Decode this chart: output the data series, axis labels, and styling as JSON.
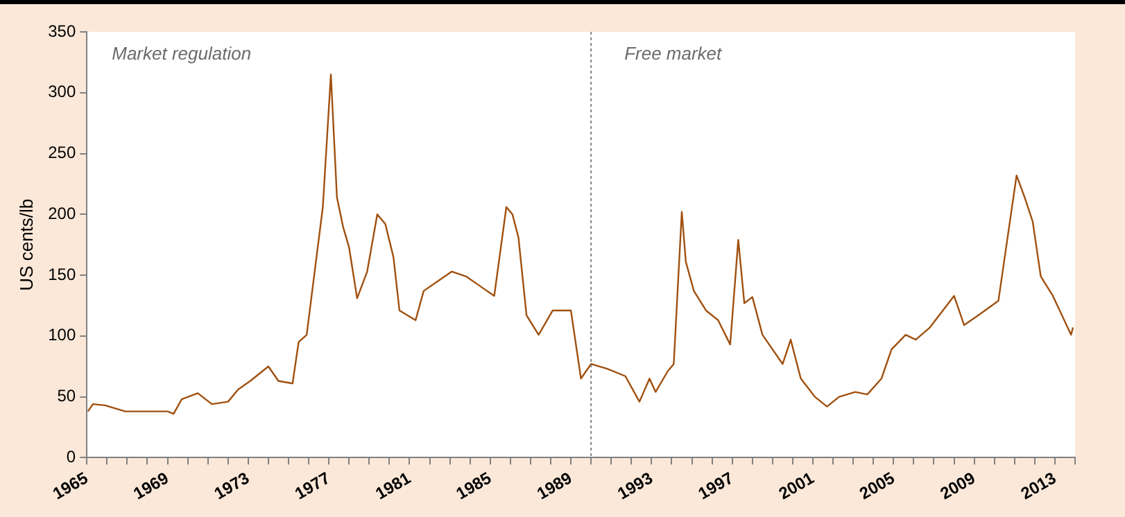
{
  "chart_data": {
    "type": "line",
    "ylabel": "US cents/lb",
    "annotations": [
      "Market regulation",
      "Free market"
    ],
    "xlim": [
      1965,
      2014
    ],
    "ylim": [
      0,
      350
    ],
    "yticks": [
      0,
      50,
      100,
      150,
      200,
      250,
      300,
      350
    ],
    "xticks": [
      1965,
      {
        "value": 1966,
        "label": null
      },
      {
        "value": 1967,
        "label": null
      },
      {
        "value": 1968,
        "label": null
      },
      1969,
      {
        "value": 1970,
        "label": null
      },
      {
        "value": 1971,
        "label": null
      },
      {
        "value": 1972,
        "label": null
      },
      1973,
      {
        "value": 1974,
        "label": null
      },
      {
        "value": 1975,
        "label": null
      },
      {
        "value": 1976,
        "label": null
      },
      1977,
      {
        "value": 1978,
        "label": null
      },
      {
        "value": 1979,
        "label": null
      },
      {
        "value": 1980,
        "label": null
      },
      1981,
      {
        "value": 1982,
        "label": null
      },
      {
        "value": 1983,
        "label": null
      },
      {
        "value": 1984,
        "label": null
      },
      1985,
      {
        "value": 1986,
        "label": null
      },
      {
        "value": 1987,
        "label": null
      },
      {
        "value": 1988,
        "label": null
      },
      1989,
      {
        "value": 1990,
        "label": null
      },
      {
        "value": 1991,
        "label": null
      },
      {
        "value": 1992,
        "label": null
      },
      1993,
      {
        "value": 1994,
        "label": null
      },
      {
        "value": 1995,
        "label": null
      },
      {
        "value": 1996,
        "label": null
      },
      1997,
      {
        "value": 1998,
        "label": null
      },
      {
        "value": 1999,
        "label": null
      },
      {
        "value": 2000,
        "label": null
      },
      2001,
      {
        "value": 2002,
        "label": null
      },
      {
        "value": 2003,
        "label": null
      },
      {
        "value": 2004,
        "label": null
      },
      2005,
      {
        "value": 2006,
        "label": null
      },
      {
        "value": 2007,
        "label": null
      },
      {
        "value": 2008,
        "label": null
      },
      2009,
      {
        "value": 2010,
        "label": null
      },
      {
        "value": 2011,
        "label": null
      },
      {
        "value": 2012,
        "label": null
      },
      2013,
      {
        "value": 2014,
        "label": null
      }
    ],
    "x": [
      1965.05,
      1965.3,
      1965.9,
      1966.9,
      1969,
      1969.3,
      1969.7,
      1970.5,
      1971.2,
      1972,
      1972.5,
      1973.1,
      1974,
      1974.5,
      1975.2,
      1975.5,
      1975.9,
      1976.7,
      1977.1,
      1977.4,
      1977.7,
      1978,
      1978.4,
      1978.9,
      1979.4,
      1979.8,
      1980.2,
      1980.5,
      1981.3,
      1981.7,
      1982.4,
      1983.1,
      1983.8,
      1984.5,
      1985.2,
      1985.8,
      1986.1,
      1986.4,
      1986.8,
      1987.4,
      1988.1,
      1989,
      1989.5,
      1990,
      1990.8,
      1991.7,
      1992.4,
      1992.9,
      1993.2,
      1993.8,
      1994.1,
      1994.5,
      1994.7,
      1995.1,
      1995.7,
      1996.3,
      1996.9,
      1997.3,
      1997.6,
      1998,
      1998.5,
      1999.5,
      1999.9,
      2000.4,
      2001.1,
      2001.7,
      2002.3,
      2003.1,
      2003.7,
      2004.4,
      2004.9,
      2005.6,
      2006.1,
      2006.8,
      2008,
      2008.5,
      2009.2,
      2010.2,
      2011.1,
      2011.5,
      2011.9,
      2012.3,
      2012.9,
      2013.8,
      2013.9
    ],
    "series": [
      {
        "color": "#a0500f",
        "values": [
          38,
          44,
          43,
          38,
          38,
          36,
          48,
          53,
          44,
          46,
          56,
          63,
          75,
          63,
          61,
          95,
          101,
          206,
          315,
          214,
          190,
          173,
          131,
          153,
          200,
          192,
          165,
          121,
          113,
          137,
          145,
          153,
          149,
          141,
          133,
          206,
          200,
          181,
          117,
          101,
          121,
          121,
          65,
          77,
          73,
          67,
          46,
          65,
          54,
          71,
          77,
          202,
          161,
          137,
          121,
          113,
          93,
          179,
          127,
          132,
          101,
          77,
          97,
          65,
          50,
          42,
          50,
          54,
          52,
          65,
          89,
          101,
          97,
          107,
          133,
          109,
          117,
          129,
          232,
          214,
          194,
          149,
          133,
          101,
          107
        ]
      }
    ],
    "ref_lines": [
      {
        "axis": "x",
        "value": 1990,
        "color": "#808080",
        "line_style": "dotted"
      }
    ],
    "grid": false,
    "legend": false,
    "marker": "none",
    "line_style": "solid"
  }
}
